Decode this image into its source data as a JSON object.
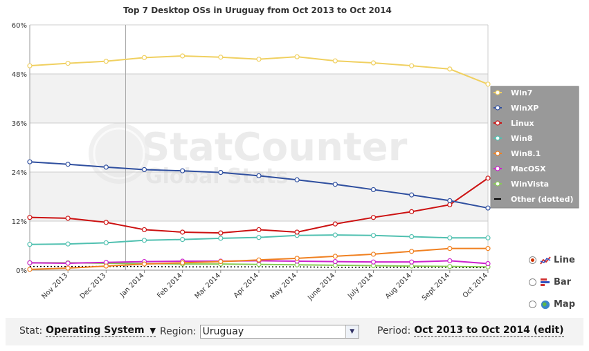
{
  "chart_data": {
    "type": "line",
    "title": "Top 7 Desktop OSs in Uruguay from Oct 2013 to Oct 2014",
    "categories": [
      "Oct 2013",
      "Nov 2013",
      "Dec 2013",
      "Jan 2014",
      "Feb 2014",
      "Mar 2014",
      "Apr 2014",
      "May 2014",
      "June 2014",
      "July 2014",
      "Aug 2014",
      "Sept 2014",
      "Oct 2014"
    ],
    "x_tick_labels": [
      "Nov 2013",
      "Dec 2013",
      "Jan 2014",
      "Feb 2014",
      "Mar 2014",
      "Apr 2014",
      "May 2014",
      "June 2014",
      "July 2014",
      "Aug 2014",
      "Sept 2014",
      "Oct 2014"
    ],
    "y_ticks": [
      "0%",
      "12%",
      "24%",
      "36%",
      "48%",
      "60%"
    ],
    "ylim": [
      0,
      60
    ],
    "grid": true,
    "legend_position": "right",
    "series": [
      {
        "name": "Win7",
        "color": "#f0d060",
        "dotted": false,
        "values": [
          50.0,
          50.6,
          51.1,
          52.0,
          52.4,
          52.1,
          51.6,
          52.2,
          51.2,
          50.7,
          50.0,
          49.2,
          45.5
        ]
      },
      {
        "name": "WinXP",
        "color": "#2f4f9f",
        "dotted": false,
        "values": [
          26.5,
          25.9,
          25.2,
          24.6,
          24.3,
          23.9,
          23.1,
          22.1,
          21.0,
          19.7,
          18.4,
          17.0,
          15.2
        ]
      },
      {
        "name": "Linux",
        "color": "#cc1111",
        "dotted": false,
        "values": [
          12.9,
          12.7,
          11.7,
          9.9,
          9.3,
          9.1,
          9.9,
          9.3,
          11.3,
          12.9,
          14.3,
          16.0,
          22.5
        ]
      },
      {
        "name": "Win8",
        "color": "#50c0b0",
        "dotted": false,
        "values": [
          6.3,
          6.4,
          6.7,
          7.3,
          7.5,
          7.8,
          8.0,
          8.5,
          8.6,
          8.5,
          8.2,
          7.9,
          7.9
        ]
      },
      {
        "name": "Win8.1",
        "color": "#f08020",
        "dotted": false,
        "values": [
          0.2,
          0.5,
          1.0,
          1.5,
          1.8,
          2.1,
          2.5,
          2.9,
          3.4,
          3.9,
          4.6,
          5.3,
          5.3
        ]
      },
      {
        "name": "MacOSX",
        "color": "#cc22cc",
        "dotted": false,
        "values": [
          1.8,
          1.7,
          1.9,
          2.1,
          2.2,
          2.2,
          2.3,
          2.2,
          2.1,
          2.0,
          2.0,
          2.3,
          1.6
        ]
      },
      {
        "name": "WinVista",
        "color": "#88cc55",
        "dotted": false,
        "values": [
          1.8,
          1.8,
          1.7,
          1.6,
          1.5,
          1.5,
          1.4,
          1.3,
          1.2,
          1.1,
          1.0,
          0.9,
          0.8
        ]
      },
      {
        "name": "Other (dotted)",
        "color": "#000000",
        "dotted": true,
        "values": [
          0.9,
          0.9,
          0.9,
          0.9,
          0.8,
          0.8,
          0.8,
          0.8,
          0.7,
          0.7,
          0.7,
          0.7,
          0.6
        ]
      }
    ]
  },
  "watermark": {
    "line1": "StatCounter",
    "line2": "Global Stats"
  },
  "chart_types": [
    {
      "label": "Line",
      "icon": "line-chart-icon",
      "selected": true
    },
    {
      "label": "Bar",
      "icon": "bar-chart-icon",
      "selected": false
    },
    {
      "label": "Map",
      "icon": "globe-icon",
      "selected": false
    }
  ],
  "controls": {
    "stat_label": "Stat:",
    "stat_value": "Operating System",
    "region_label": "Region:",
    "region_value": "Uruguay",
    "period_label": "Period:",
    "period_value": "Oct 2013 to Oct 2014 (edit)"
  }
}
